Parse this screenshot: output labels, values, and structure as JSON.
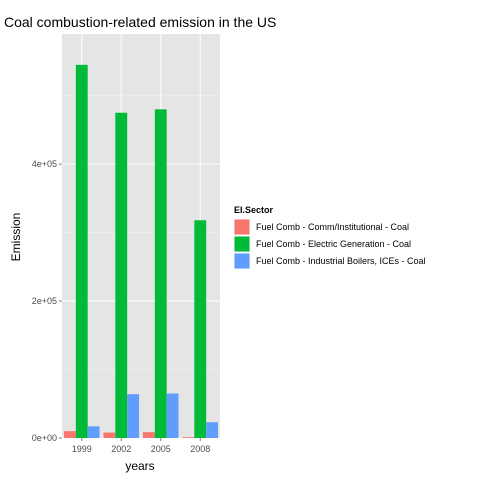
{
  "chart_data": {
    "type": "bar",
    "title": "Coal combustion-related emission in the US",
    "xlabel": "years",
    "ylabel": "Emission",
    "categories": [
      "1999",
      "2002",
      "2005",
      "2008"
    ],
    "series": [
      {
        "name": "Fuel Comb - Comm/Institutional - Coal",
        "color": "#F8766D",
        "values": [
          10000,
          8000,
          8500,
          1200
        ]
      },
      {
        "name": "Fuel Comb - Electric Generation - Coal",
        "color": "#00BA38",
        "values": [
          545000,
          475000,
          480000,
          318000
        ]
      },
      {
        "name": "Fuel Comb - Industrial Boilers, ICEs - Coal",
        "color": "#619CFF",
        "values": [
          17000,
          64000,
          65000,
          23000
        ]
      }
    ],
    "ylim": [
      0,
      590000
    ],
    "yticks": [
      0,
      200000,
      400000
    ],
    "ytick_labels": [
      "0e+00",
      "2e+05",
      "4e+05"
    ],
    "legend_title": "EI.Sector",
    "legend_position": "right",
    "grid": true,
    "panel_color": "#E5E5E5",
    "grid_color": "#FFFFFF"
  }
}
